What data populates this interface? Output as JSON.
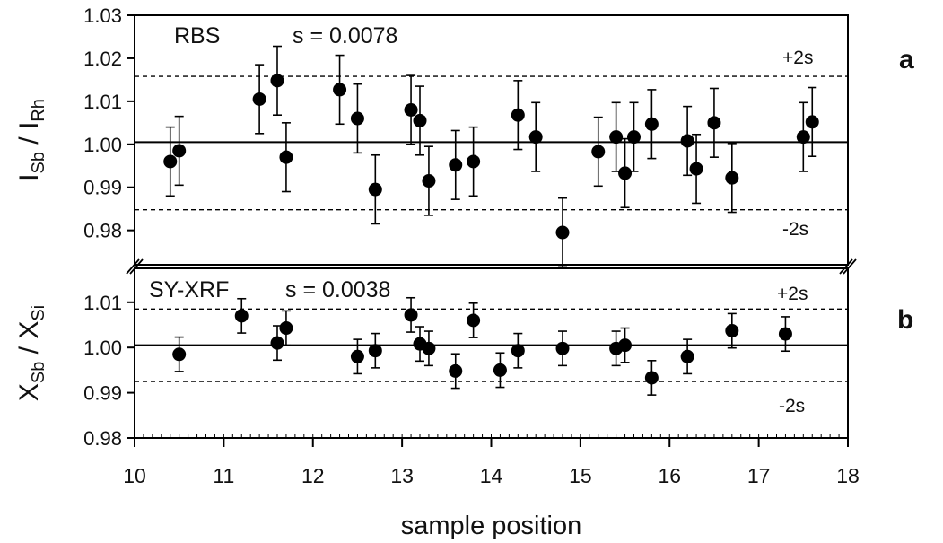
{
  "chart_data": [
    {
      "type": "scatter",
      "panel_letter": "a",
      "annotation": "RBS",
      "stat_label": "s = 0.0078",
      "ylabel_main": "I",
      "ylabel_sub1": "Sb",
      "ylabel_mid": " / I",
      "ylabel_sub2": "Rh",
      "ylim": [
        0.972,
        1.03
      ],
      "yticks": [
        0.98,
        0.99,
        1.0,
        1.01,
        1.02,
        1.03
      ],
      "ytick_labels": [
        "0.98",
        "0.99",
        "1.00",
        "1.01",
        "1.02",
        "1.03"
      ],
      "mean": 1.0005,
      "upper_limit": 1.0158,
      "lower_limit": 0.9848,
      "upper_label": "+2s",
      "lower_label": "-2s",
      "points": [
        {
          "x": 10.4,
          "y": 0.996,
          "err": 0.008
        },
        {
          "x": 10.5,
          "y": 0.9985,
          "err": 0.008
        },
        {
          "x": 11.4,
          "y": 1.0105,
          "err": 0.008
        },
        {
          "x": 11.6,
          "y": 1.0148,
          "err": 0.008
        },
        {
          "x": 11.7,
          "y": 0.997,
          "err": 0.008
        },
        {
          "x": 12.3,
          "y": 1.0127,
          "err": 0.008
        },
        {
          "x": 12.5,
          "y": 1.006,
          "err": 0.008
        },
        {
          "x": 12.7,
          "y": 0.9895,
          "err": 0.008
        },
        {
          "x": 13.1,
          "y": 1.008,
          "err": 0.008
        },
        {
          "x": 13.2,
          "y": 1.0055,
          "err": 0.008
        },
        {
          "x": 13.3,
          "y": 0.9915,
          "err": 0.008
        },
        {
          "x": 13.6,
          "y": 0.9952,
          "err": 0.008
        },
        {
          "x": 13.8,
          "y": 0.996,
          "err": 0.008
        },
        {
          "x": 14.3,
          "y": 1.0068,
          "err": 0.008
        },
        {
          "x": 14.5,
          "y": 1.0017,
          "err": 0.008
        },
        {
          "x": 14.8,
          "y": 0.9795,
          "err": 0.008
        },
        {
          "x": 15.2,
          "y": 0.9983,
          "err": 0.008
        },
        {
          "x": 15.4,
          "y": 1.0017,
          "err": 0.008
        },
        {
          "x": 15.5,
          "y": 0.9933,
          "err": 0.008
        },
        {
          "x": 15.6,
          "y": 1.0017,
          "err": 0.008
        },
        {
          "x": 15.8,
          "y": 1.0047,
          "err": 0.008
        },
        {
          "x": 16.2,
          "y": 1.0008,
          "err": 0.008
        },
        {
          "x": 16.3,
          "y": 0.9943,
          "err": 0.008
        },
        {
          "x": 16.5,
          "y": 1.005,
          "err": 0.008
        },
        {
          "x": 16.7,
          "y": 0.9922,
          "err": 0.008
        },
        {
          "x": 17.5,
          "y": 1.0017,
          "err": 0.008
        },
        {
          "x": 17.6,
          "y": 1.0052,
          "err": 0.008
        }
      ]
    },
    {
      "type": "scatter",
      "panel_letter": "b",
      "annotation": "SY-XRF",
      "stat_label": "s = 0.0038",
      "ylabel_main": "X",
      "ylabel_sub1": "Sb",
      "ylabel_mid": " / X",
      "ylabel_sub2": "Si",
      "xlabel": "sample position",
      "xlim": [
        10,
        18
      ],
      "xticks": [
        10,
        11,
        12,
        13,
        14,
        15,
        16,
        17,
        18
      ],
      "xtick_labels": [
        "10",
        "11",
        "12",
        "13",
        "14",
        "15",
        "16",
        "17",
        "18"
      ],
      "ylim": [
        0.98,
        1.0175
      ],
      "yticks": [
        0.98,
        0.99,
        1.0,
        1.01
      ],
      "ytick_labels": [
        "0.98",
        "0.99",
        "1.00",
        "1.01"
      ],
      "mean": 1.0005,
      "upper_limit": 1.0085,
      "lower_limit": 0.9925,
      "upper_label": "+2s",
      "lower_label": "-2s",
      "points": [
        {
          "x": 10.5,
          "y": 0.9985,
          "err": 0.0038
        },
        {
          "x": 11.2,
          "y": 1.007,
          "err": 0.0038
        },
        {
          "x": 11.6,
          "y": 1.001,
          "err": 0.0038
        },
        {
          "x": 11.7,
          "y": 1.0043,
          "err": 0.0038
        },
        {
          "x": 12.5,
          "y": 0.998,
          "err": 0.0038
        },
        {
          "x": 12.7,
          "y": 0.9993,
          "err": 0.0038
        },
        {
          "x": 13.1,
          "y": 1.0072,
          "err": 0.0038
        },
        {
          "x": 13.2,
          "y": 1.0008,
          "err": 0.0038
        },
        {
          "x": 13.3,
          "y": 0.9998,
          "err": 0.0038
        },
        {
          "x": 13.6,
          "y": 0.9948,
          "err": 0.0038
        },
        {
          "x": 13.8,
          "y": 1.006,
          "err": 0.0038
        },
        {
          "x": 14.1,
          "y": 0.995,
          "err": 0.0038
        },
        {
          "x": 14.3,
          "y": 0.9993,
          "err": 0.0038
        },
        {
          "x": 14.8,
          "y": 0.9998,
          "err": 0.0038
        },
        {
          "x": 15.4,
          "y": 0.9998,
          "err": 0.0038
        },
        {
          "x": 15.5,
          "y": 1.0005,
          "err": 0.0038
        },
        {
          "x": 15.8,
          "y": 0.9933,
          "err": 0.0038
        },
        {
          "x": 16.2,
          "y": 0.998,
          "err": 0.0038
        },
        {
          "x": 16.7,
          "y": 1.0037,
          "err": 0.0038
        },
        {
          "x": 17.3,
          "y": 1.003,
          "err": 0.0038
        }
      ]
    }
  ]
}
